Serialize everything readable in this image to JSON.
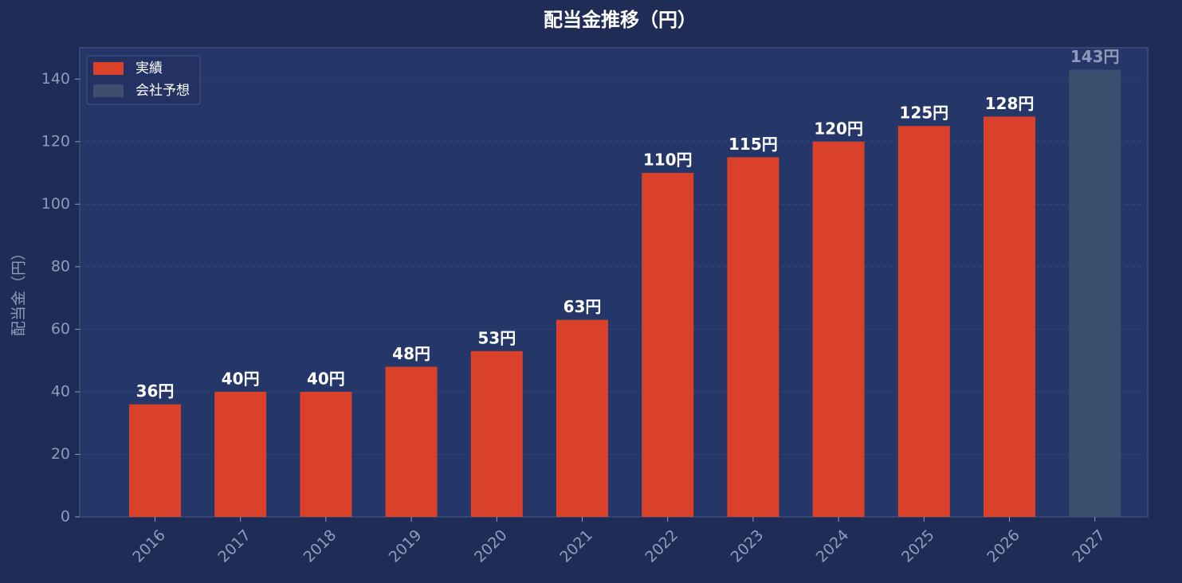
{
  "chart_data": {
    "type": "bar",
    "title": "配当金推移（円）",
    "y_label": "配当金（円）",
    "categories": [
      "2016",
      "2017",
      "2018",
      "2019",
      "2020",
      "2021",
      "2022",
      "2023",
      "2024",
      "2025",
      "2026",
      "2027"
    ],
    "series": [
      {
        "name": "実績",
        "color": "#d9412a",
        "label_color": "#ffffff",
        "values": [
          36,
          40,
          40,
          48,
          53,
          63,
          110,
          115,
          120,
          125,
          128,
          null
        ],
        "value_labels": [
          "36円",
          "40円",
          "40円",
          "48円",
          "53円",
          "63円",
          "110円",
          "115円",
          "120円",
          "125円",
          "128円",
          null
        ]
      },
      {
        "name": "会社予想",
        "color": "#3d4f6e",
        "label_color": "#8d9bb8",
        "values": [
          null,
          null,
          null,
          null,
          null,
          null,
          null,
          null,
          null,
          null,
          null,
          143
        ],
        "value_labels": [
          null,
          null,
          null,
          null,
          null,
          null,
          null,
          null,
          null,
          null,
          null,
          "143円"
        ]
      }
    ],
    "ylim": [
      0,
      150
    ],
    "yticks": [
      0,
      20,
      40,
      60,
      80,
      100,
      120,
      140
    ],
    "grid": true,
    "legend": "upper left"
  }
}
